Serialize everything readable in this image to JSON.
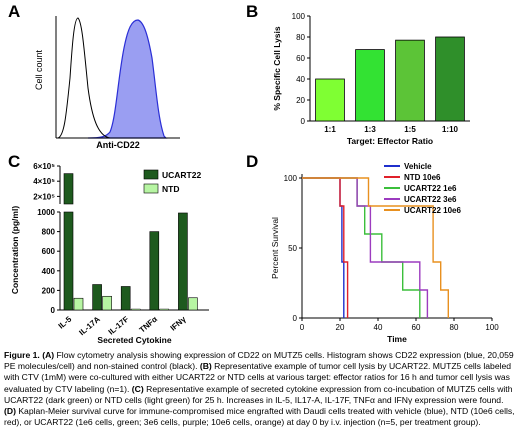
{
  "panels": {
    "A": {
      "label": "A",
      "ylabel": "Cell count",
      "xlabel": "Anti-CD22",
      "colors": {
        "control": "#000000",
        "cd22_fill": "#9a9ef2",
        "cd22_line": "#2b2fd6"
      }
    },
    "B": {
      "label": "B",
      "chart_data": {
        "type": "bar",
        "categories": [
          "1:1",
          "1:3",
          "1:5",
          "1:10"
        ],
        "values": [
          40,
          68,
          77,
          80
        ],
        "ylim": [
          0,
          100
        ],
        "yticks": [
          "0",
          "20",
          "40",
          "60",
          "80",
          "100"
        ],
        "xlabel": "Target: Effector Ratio",
        "ylabel": "% Specific Cell Lysis",
        "colors": [
          "#7fff33",
          "#33e233",
          "#5cc437",
          "#2f8f2a"
        ]
      }
    },
    "C": {
      "label": "C",
      "chart_data": {
        "type": "bar",
        "categories": [
          "IL-5",
          "IL-17A",
          "IL-17F",
          "TNFα",
          "IFNγ"
        ],
        "series": [
          {
            "name": "UCART22",
            "values": [
              500000,
              260,
              240,
              800,
              990
            ],
            "color": "#1e5a1e"
          },
          {
            "name": "NTD",
            "values": [
              120,
              140,
              0,
              0,
              125
            ],
            "color": "#b7f5a3"
          }
        ],
        "ylabel": "Concentration (pg/ml)",
        "xlabel": "Secreted Cytokine",
        "yticks_lower": [
          "0",
          "200",
          "400",
          "600",
          "800",
          "1000"
        ],
        "yticks_upper": [
          "2×10⁵",
          "4×10⁵",
          "6×10⁵"
        ],
        "legend_position": "top-right"
      }
    },
    "D": {
      "label": "D",
      "chart_data": {
        "type": "line",
        "xlabel": "Time",
        "ylabel": "Percent Survival",
        "xlim": [
          0,
          100
        ],
        "ylim": [
          0,
          100
        ],
        "xticks": [
          "0",
          "20",
          "40",
          "60",
          "80",
          "100"
        ],
        "yticks": [
          "0",
          "50",
          "100"
        ],
        "legend_position": "top-right",
        "series": [
          {
            "name": "Vehicle",
            "color": "#1f2fcc",
            "points": [
              [
                0,
                100
              ],
              [
                20,
                100
              ],
              [
                20,
                80
              ],
              [
                21,
                80
              ],
              [
                21,
                40
              ],
              [
                22,
                40
              ],
              [
                22,
                0
              ]
            ]
          },
          {
            "name": "NTD 10e6",
            "color": "#e0202a",
            "points": [
              [
                0,
                100
              ],
              [
                20,
                100
              ],
              [
                20,
                80
              ],
              [
                22,
                80
              ],
              [
                22,
                40
              ],
              [
                24,
                40
              ],
              [
                24,
                0
              ]
            ]
          },
          {
            "name": "UCART22 1e6",
            "color": "#3bbf3b",
            "points": [
              [
                0,
                100
              ],
              [
                29,
                100
              ],
              [
                29,
                80
              ],
              [
                33,
                80
              ],
              [
                33,
                60
              ],
              [
                42,
                60
              ],
              [
                42,
                40
              ],
              [
                53,
                40
              ],
              [
                53,
                20
              ],
              [
                62,
                20
              ],
              [
                62,
                0
              ]
            ]
          },
          {
            "name": "UCART22 3e6",
            "color": "#9c3bbf",
            "points": [
              [
                0,
                100
              ],
              [
                29,
                100
              ],
              [
                29,
                80
              ],
              [
                36,
                80
              ],
              [
                36,
                40
              ],
              [
                62,
                40
              ],
              [
                62,
                20
              ],
              [
                66,
                20
              ],
              [
                66,
                0
              ]
            ]
          },
          {
            "name": "UCART22 10e6",
            "color": "#e8901f",
            "points": [
              [
                0,
                100
              ],
              [
                35,
                100
              ],
              [
                35,
                80
              ],
              [
                69,
                80
              ],
              [
                69,
                40
              ],
              [
                73,
                40
              ],
              [
                73,
                20
              ],
              [
                77,
                20
              ],
              [
                77,
                0
              ]
            ]
          }
        ]
      }
    }
  },
  "caption": {
    "title": "Figure 1.",
    "a_key": "(A)",
    "a_text": " Flow cytometry analysis showing expression of CD22 on MUTZ5 cells. Histogram shows CD22 expression (blue, 20,059 PE molecules/cell) and non-stained control (black). ",
    "b_key": "(B)",
    "b_text": " Representative example of tumor cell lysis by UCART22. MUTZ5 cells labeled with CTV (1mM) were co-cultured with either UCART22 or NTD cells at various target: effector ratios for 16 h and tumor cell lysis was evaluated by CTV labeling (n=1). ",
    "c_key": "(C)",
    "c_text": " Representative example of secreted cytokine expression from co-incubation of MUTZ5 cells with UCART22 (dark green) or NTD cells (light green) for 25 h. Increases in IL-5, IL17-A, IL-17F, TNFα and IFNγ expression were found. ",
    "d_key": "(D)",
    "d_text": " Kaplan-Meier survival curve for immune-compromised mice engrafted with Daudi cells treated with vehicle (blue), NTD (10e6 cells, red), or UCART22 (1e6 cells, green; 3e6 cells, purple; 10e6 cells, orange) at day 0 by i.v. injection (n=5, per treatment group)."
  }
}
